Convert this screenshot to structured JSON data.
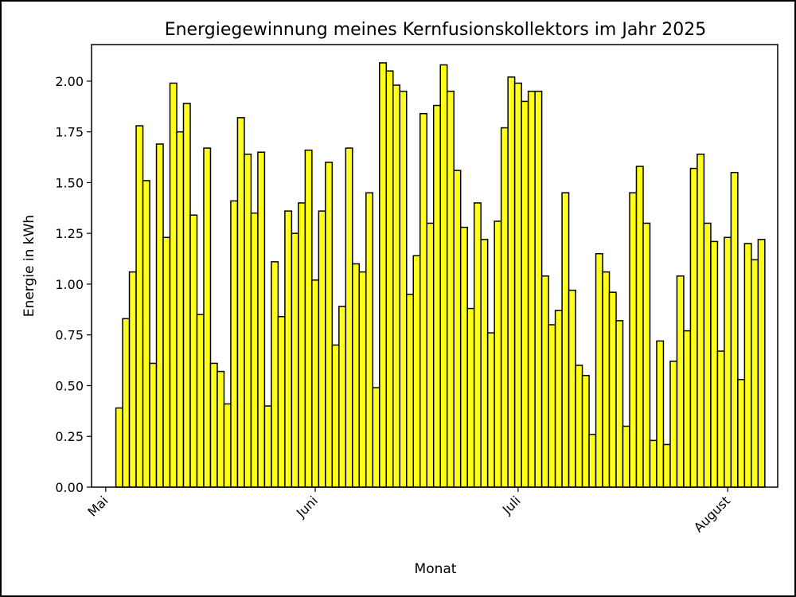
{
  "chart_data": {
    "type": "bar",
    "title": "Energiegewinnung meines Kernfusionskollektors im Jahr 2025",
    "xlabel": "Monat",
    "ylabel": "Energie in kWh",
    "ylim": [
      0,
      2.18
    ],
    "yticks": [
      "0.00",
      "0.25",
      "0.50",
      "0.75",
      "1.00",
      "1.25",
      "1.50",
      "1.75",
      "2.00"
    ],
    "month_ticks": [
      {
        "label": "Mai",
        "date": "2025-05-01"
      },
      {
        "label": "Juni",
        "date": "2025-06-01"
      },
      {
        "label": "Juli",
        "date": "2025-07-01"
      },
      {
        "label": "August",
        "date": "2025-08-01"
      }
    ],
    "x_start_date": "2025-05-01",
    "bar_color": "#ffff1a",
    "edge_color": "#000000",
    "grid": false,
    "dates": [
      "2025-05-01",
      "2025-05-02",
      "2025-05-03",
      "2025-05-04",
      "2025-05-05",
      "2025-05-06",
      "2025-05-07",
      "2025-05-08",
      "2025-05-09",
      "2025-05-10",
      "2025-05-11",
      "2025-05-12",
      "2025-05-13",
      "2025-05-14",
      "2025-05-15",
      "2025-05-16",
      "2025-05-17",
      "2025-05-18",
      "2025-05-19",
      "2025-05-20",
      "2025-05-21",
      "2025-05-22",
      "2025-05-23",
      "2025-05-24",
      "2025-05-25",
      "2025-05-26",
      "2025-05-27",
      "2025-05-28",
      "2025-05-29",
      "2025-05-30",
      "2025-05-31",
      "2025-06-01",
      "2025-06-02",
      "2025-06-03",
      "2025-06-04",
      "2025-06-05",
      "2025-06-06",
      "2025-06-07",
      "2025-06-08",
      "2025-06-09",
      "2025-06-10",
      "2025-06-11",
      "2025-06-12",
      "2025-06-13",
      "2025-06-14",
      "2025-06-15",
      "2025-06-16",
      "2025-06-17",
      "2025-06-18",
      "2025-06-19",
      "2025-06-20",
      "2025-06-21",
      "2025-06-22",
      "2025-06-23",
      "2025-06-24",
      "2025-06-25",
      "2025-06-26",
      "2025-06-27",
      "2025-06-28",
      "2025-06-29",
      "2025-06-30",
      "2025-07-01",
      "2025-07-02",
      "2025-07-03",
      "2025-07-04",
      "2025-07-05",
      "2025-07-06",
      "2025-07-07",
      "2025-07-08",
      "2025-07-09",
      "2025-07-10",
      "2025-07-11",
      "2025-07-12",
      "2025-07-13",
      "2025-07-14",
      "2025-07-15",
      "2025-07-16",
      "2025-07-17",
      "2025-07-18",
      "2025-07-19",
      "2025-07-20",
      "2025-07-21",
      "2025-07-22",
      "2025-07-23",
      "2025-07-24",
      "2025-07-25",
      "2025-07-26",
      "2025-07-27",
      "2025-07-28",
      "2025-07-29",
      "2025-07-30",
      "2025-07-31",
      "2025-08-01",
      "2025-08-02",
      "2025-08-03",
      "2025-08-04",
      "2025-08-05",
      "2025-08-06"
    ],
    "values": [
      0.0,
      0.0,
      0.39,
      0.83,
      1.06,
      1.78,
      1.51,
      0.61,
      1.69,
      1.23,
      1.99,
      1.75,
      1.89,
      1.34,
      0.85,
      1.67,
      0.61,
      0.57,
      0.41,
      1.41,
      1.82,
      1.64,
      1.35,
      1.65,
      0.4,
      1.11,
      0.84,
      1.36,
      1.25,
      1.4,
      1.66,
      1.02,
      1.36,
      1.6,
      0.7,
      0.89,
      1.67,
      1.1,
      1.06,
      1.45,
      0.49,
      2.09,
      2.05,
      1.98,
      1.95,
      0.95,
      1.14,
      1.84,
      1.3,
      1.88,
      2.08,
      1.95,
      1.56,
      1.28,
      0.88,
      1.4,
      1.22,
      0.76,
      1.31,
      1.77,
      2.02,
      1.99,
      1.9,
      1.95,
      1.95,
      1.04,
      0.8,
      0.87,
      1.45,
      0.97,
      0.6,
      0.55,
      0.26,
      1.15,
      1.06,
      0.96,
      0.82,
      0.3,
      1.45,
      1.58,
      1.3,
      0.23,
      0.72,
      0.21,
      0.62,
      1.04,
      0.77,
      1.57,
      1.64,
      1.3,
      1.21,
      0.67,
      1.23,
      1.55,
      0.53,
      1.2,
      1.12,
      1.22
    ]
  }
}
